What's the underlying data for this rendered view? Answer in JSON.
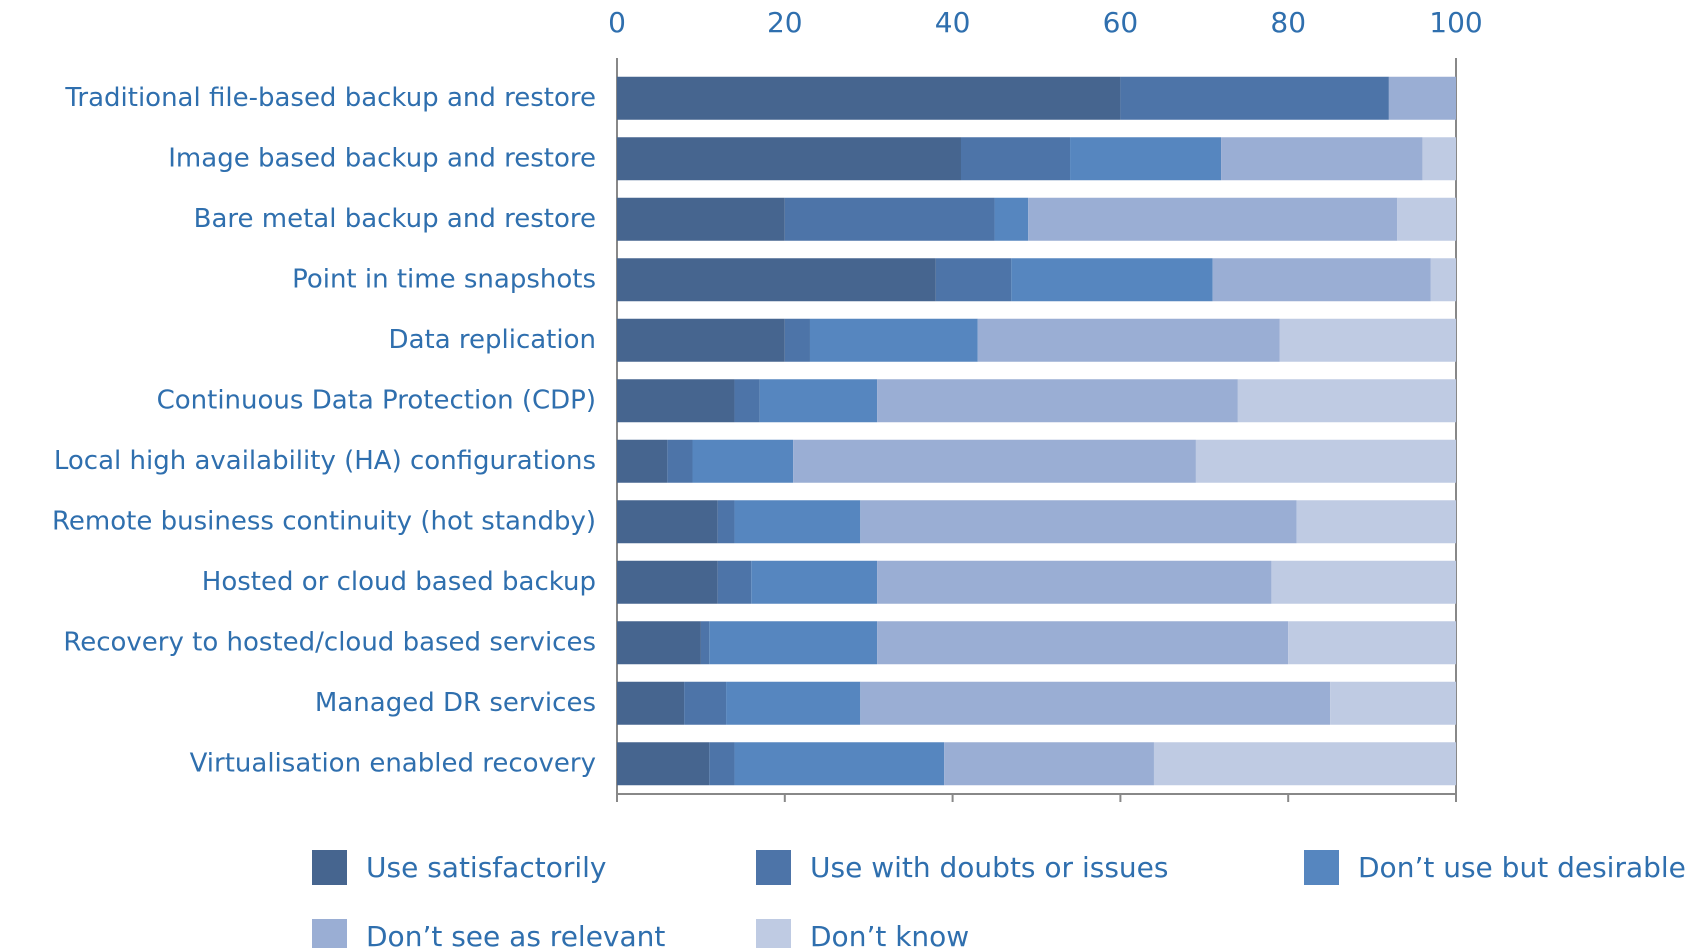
{
  "chart_data": {
    "type": "stacked-bar-horizontal",
    "categories": [
      "Traditional file-based backup and restore",
      "Image based backup and restore",
      "Bare metal backup and restore",
      "Point in time snapshots",
      "Data replication",
      "Continuous Data Protection (CDP)",
      "Local high availability (HA) configurations",
      "Remote business continuity (hot standby)",
      "Hosted or cloud based backup",
      "Recovery to hosted/cloud based services",
      "Managed DR services",
      "Virtualisation enabled recovery"
    ],
    "series": [
      {
        "name": "Use satisfactorily",
        "color": "#46658f",
        "values": [
          60,
          41,
          20,
          38,
          20,
          14,
          6,
          12,
          12,
          10,
          8,
          11
        ]
      },
      {
        "name": "Use with doubts or issues",
        "color": "#4d74a8",
        "values": [
          32,
          13,
          25,
          9,
          3,
          3,
          3,
          2,
          4,
          1,
          5,
          3
        ]
      },
      {
        "name": "Don’t use but desirable",
        "color": "#5686bf",
        "values": [
          0,
          18,
          4,
          24,
          20,
          14,
          12,
          15,
          15,
          20,
          16,
          25
        ]
      },
      {
        "name": "Don’t see as relevant",
        "color": "#9aaed4",
        "values": [
          8,
          24,
          44,
          26,
          36,
          43,
          48,
          52,
          47,
          49,
          56,
          25
        ]
      },
      {
        "name": "Don’t know",
        "color": "#bfcbe3",
        "values": [
          0,
          4,
          7,
          3,
          21,
          26,
          31,
          19,
          22,
          20,
          15,
          36
        ]
      }
    ],
    "xlim": [
      0,
      100
    ],
    "xticks": [
      0,
      20,
      40,
      60,
      80,
      100
    ],
    "legend": "bottom"
  }
}
